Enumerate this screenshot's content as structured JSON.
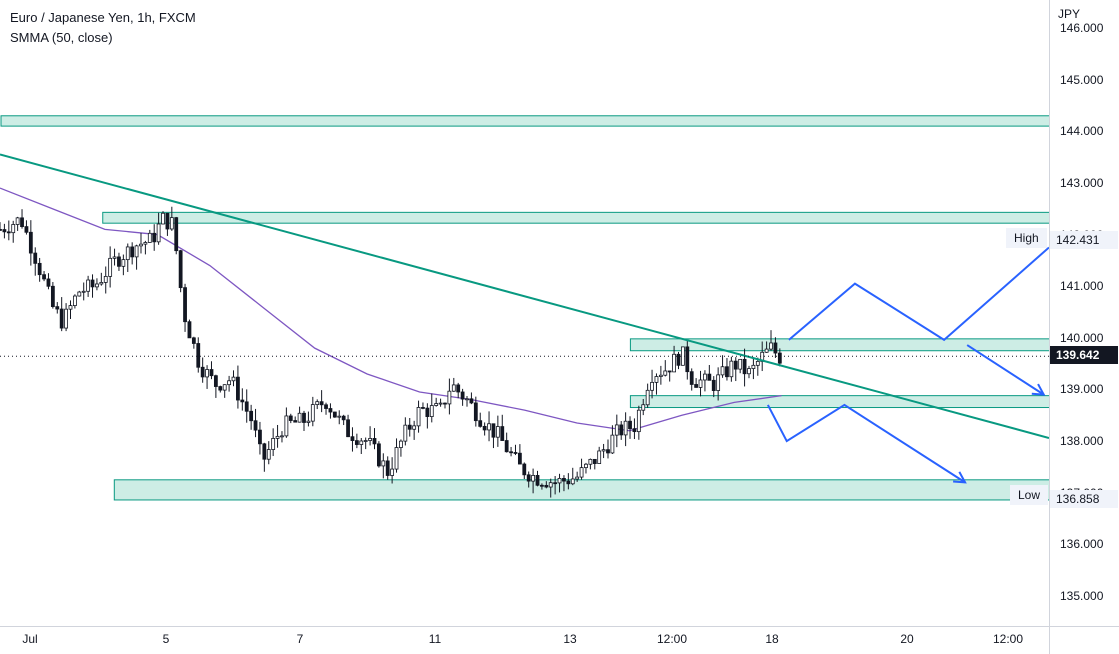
{
  "legend": {
    "title": "Euro / Japanese Yen, 1h, FXCM",
    "indicator": "SMMA (50, close)"
  },
  "price_axis": {
    "currency": "JPY",
    "ticks": [
      "146.000",
      "145.000",
      "144.000",
      "143.000",
      "142.000",
      "141.000",
      "140.000",
      "139.000",
      "138.000",
      "137.000",
      "136.000",
      "135.000"
    ],
    "high_label": "High",
    "high_value": "142.431",
    "low_label": "Low",
    "low_value": "136.858",
    "current_value": "139.642"
  },
  "time_axis": {
    "labels": [
      "Jul",
      "5",
      "7",
      "11",
      "13",
      "12:00",
      "18",
      "20",
      "12:00"
    ]
  },
  "colors": {
    "zone_fill": "#c8ebe2",
    "zone_stroke": "#089981",
    "trendline": "#089981",
    "smma": "#7e57c2",
    "projection": "#2962ff",
    "candle": "#131722"
  },
  "chart_data": {
    "type": "candlestick",
    "symbol": "EURJPY",
    "timeframe": "1h",
    "ylim": [
      134.6,
      146.4
    ],
    "close_path": [
      [
        0,
        142.1
      ],
      [
        0.02,
        142.3
      ],
      [
        0.035,
        141.5
      ],
      [
        0.05,
        140.6
      ],
      [
        0.06,
        140.3
      ],
      [
        0.075,
        140.9
      ],
      [
        0.09,
        141.0
      ],
      [
        0.11,
        141.5
      ],
      [
        0.13,
        141.8
      ],
      [
        0.145,
        141.9
      ],
      [
        0.155,
        142.3
      ],
      [
        0.165,
        142.2
      ],
      [
        0.175,
        140.5
      ],
      [
        0.19,
        139.5
      ],
      [
        0.205,
        139.1
      ],
      [
        0.22,
        139.2
      ],
      [
        0.24,
        138.4
      ],
      [
        0.25,
        137.6
      ],
      [
        0.27,
        138.3
      ],
      [
        0.29,
        138.4
      ],
      [
        0.31,
        138.8
      ],
      [
        0.33,
        138.2
      ],
      [
        0.35,
        138.0
      ],
      [
        0.37,
        137.4
      ],
      [
        0.385,
        138.1
      ],
      [
        0.4,
        138.6
      ],
      [
        0.42,
        138.6
      ],
      [
        0.43,
        139.1
      ],
      [
        0.445,
        138.8
      ],
      [
        0.46,
        138.4
      ],
      [
        0.475,
        138.1
      ],
      [
        0.495,
        137.5
      ],
      [
        0.51,
        137.3
      ],
      [
        0.53,
        137.2
      ],
      [
        0.55,
        137.3
      ],
      [
        0.57,
        137.7
      ],
      [
        0.59,
        138.2
      ],
      [
        0.605,
        138.3
      ],
      [
        0.62,
        139.3
      ],
      [
        0.635,
        139.4
      ],
      [
        0.65,
        139.7
      ],
      [
        0.66,
        139.2
      ],
      [
        0.68,
        139.1
      ],
      [
        0.7,
        139.5
      ],
      [
        0.715,
        139.3
      ],
      [
        0.725,
        139.6
      ],
      [
        0.735,
        139.8
      ],
      [
        0.745,
        139.6
      ]
    ],
    "smma_path": [
      [
        0,
        142.9
      ],
      [
        0.05,
        142.5
      ],
      [
        0.1,
        142.1
      ],
      [
        0.15,
        142.0
      ],
      [
        0.2,
        141.4
      ],
      [
        0.25,
        140.6
      ],
      [
        0.3,
        139.8
      ],
      [
        0.35,
        139.3
      ],
      [
        0.4,
        138.95
      ],
      [
        0.45,
        138.8
      ],
      [
        0.5,
        138.6
      ],
      [
        0.55,
        138.35
      ],
      [
        0.6,
        138.2
      ],
      [
        0.65,
        138.5
      ],
      [
        0.7,
        138.75
      ],
      [
        0.745,
        138.88
      ]
    ],
    "zones": [
      {
        "x0": 0.0,
        "x1": 1.0,
        "y0": 144.1,
        "y1": 144.3
      },
      {
        "x0": 0.097,
        "x1": 1.0,
        "y0": 142.22,
        "y1": 142.43
      },
      {
        "x0": 0.6,
        "x1": 1.0,
        "y0": 139.75,
        "y1": 139.98
      },
      {
        "x0": 0.6,
        "x1": 1.0,
        "y0": 138.65,
        "y1": 138.88
      },
      {
        "x0": 0.108,
        "x1": 1.0,
        "y0": 136.86,
        "y1": 137.25
      }
    ],
    "trendline": [
      [
        0.0,
        143.55
      ],
      [
        1.0,
        138.06
      ]
    ],
    "projections": [
      [
        [
          0.752,
          139.96
        ],
        [
          0.815,
          141.05
        ],
        [
          0.9,
          139.96
        ],
        [
          1.0,
          141.75
        ]
      ],
      [
        [
          0.922,
          139.86
        ],
        [
          0.995,
          138.9
        ]
      ],
      [
        [
          0.732,
          138.7
        ],
        [
          0.75,
          138.0
        ],
        [
          0.805,
          138.7
        ],
        [
          0.92,
          137.2
        ]
      ]
    ],
    "high": 142.431,
    "low": 136.858,
    "last": 139.642
  }
}
